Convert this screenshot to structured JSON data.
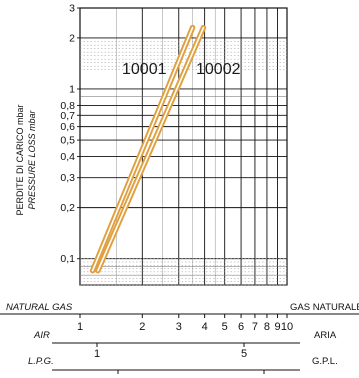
{
  "chart_data": {
    "type": "line",
    "xscale": "log",
    "yscale": "log",
    "xlim": [
      1,
      10
    ],
    "ylim": [
      0.07,
      3
    ],
    "ylabel_lines": [
      "PERDITE DI CARICO mbar",
      "PRESSURE LOSS mbar"
    ],
    "y_ticks": [
      {
        "value": 0.1,
        "label": "0,1"
      },
      {
        "value": 0.2,
        "label": "0,2"
      },
      {
        "value": 0.3,
        "label": "0,3"
      },
      {
        "value": 0.4,
        "label": "0,4"
      },
      {
        "value": 0.5,
        "label": "0,5"
      },
      {
        "value": 0.6,
        "label": "0,6"
      },
      {
        "value": 0.7,
        "label": "0,7"
      },
      {
        "value": 0.8,
        "label": "0,8"
      },
      {
        "value": 1,
        "label": "1"
      },
      {
        "value": 2,
        "label": "2"
      },
      {
        "value": 3,
        "label": "3"
      }
    ],
    "x_ticks": [
      {
        "value": 1,
        "label": "1"
      },
      {
        "value": 2,
        "label": "2"
      },
      {
        "value": 3,
        "label": "3"
      },
      {
        "value": 4,
        "label": "4"
      },
      {
        "value": 5,
        "label": "5"
      },
      {
        "value": 6,
        "label": "6"
      },
      {
        "value": 7,
        "label": "7"
      },
      {
        "value": 8,
        "label": "8"
      },
      {
        "value": 9,
        "label": "9"
      },
      {
        "value": 10,
        "label": "10"
      }
    ],
    "flow_scales": [
      {
        "left_label": "NATURAL GAS",
        "right_label": "GAS NATURALE",
        "ticks": []
      },
      {
        "left_label": "AIR",
        "right_label": "ARIA",
        "ticks": [
          {
            "value": 1,
            "label": "1"
          },
          {
            "value": 5,
            "label": "5"
          }
        ]
      },
      {
        "left_label": "L.P.G.",
        "right_label": "G.P.L.",
        "ticks": [
          {
            "value": 1,
            "label": "1"
          },
          {
            "value": 5,
            "label": "5"
          }
        ]
      }
    ],
    "series": [
      {
        "name": "10001",
        "x": [
          1.15,
          3.5
        ],
        "y": [
          0.085,
          2.3
        ],
        "color": "#e0a040"
      },
      {
        "name": "10002",
        "x": [
          1.22,
          3.95
        ],
        "y": [
          0.085,
          2.3
        ],
        "color": "#e0a040"
      }
    ],
    "grid": true
  }
}
